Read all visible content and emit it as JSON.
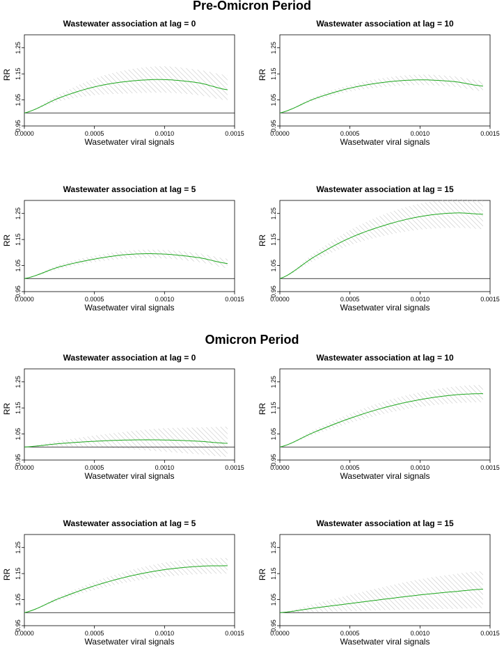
{
  "sections": [
    {
      "title": "Pre-Omicron Period"
    },
    {
      "title": "Omicron Period"
    }
  ],
  "colors": {
    "curve": "#1aa61a",
    "ci_hatch": "#c8c8c8",
    "axis": "#000000",
    "reference": "#000000"
  },
  "chart_data": [
    {
      "type": "line",
      "section": "Pre-Omicron Period",
      "title": "Wastewater association at lag = 0",
      "xlabel": "Wasetwater viral signals",
      "ylabel": "RR",
      "xlim": [
        0,
        0.0015
      ],
      "ylim": [
        0.95,
        1.3
      ],
      "xticks": [
        0,
        0.0005,
        0.001,
        0.0015
      ],
      "xtick_labels": [
        "0.0000",
        "0.0005",
        "0.0010",
        "0.0015"
      ],
      "yticks": [
        0.95,
        1.05,
        1.15,
        1.25
      ],
      "ytick_labels": [
        "0.95",
        "1.05",
        "1.15",
        "1.25"
      ],
      "reference_line": 1.0,
      "x": [
        0,
        0.00025,
        0.0005,
        0.00075,
        0.001,
        0.00125,
        0.00145
      ],
      "rr": [
        1.0,
        1.058,
        1.1,
        1.122,
        1.128,
        1.115,
        1.089
      ],
      "lower": [
        1.0,
        1.045,
        1.068,
        1.075,
        1.078,
        1.068,
        1.048
      ],
      "upper": [
        1.0,
        1.072,
        1.132,
        1.167,
        1.179,
        1.165,
        1.145
      ]
    },
    {
      "type": "line",
      "section": "Pre-Omicron Period",
      "title": "Wastewater association at lag = 10",
      "xlabel": "Wasetwater viral signals",
      "ylabel": "RR",
      "xlim": [
        0,
        0.0015
      ],
      "ylim": [
        0.95,
        1.3
      ],
      "xticks": [
        0,
        0.0005,
        0.001,
        0.0015
      ],
      "xtick_labels": [
        "0.0000",
        "0.0005",
        "0.0010",
        "0.0015"
      ],
      "yticks": [
        0.95,
        1.05,
        1.15,
        1.25
      ],
      "ytick_labels": [
        "0.95",
        "1.05",
        "1.15",
        "1.25"
      ],
      "reference_line": 1.0,
      "x": [
        0,
        0.00025,
        0.0005,
        0.00075,
        0.001,
        0.00125,
        0.00145
      ],
      "rr": [
        1.0,
        1.055,
        1.095,
        1.118,
        1.127,
        1.12,
        1.103
      ],
      "lower": [
        1.0,
        1.048,
        1.082,
        1.1,
        1.107,
        1.1,
        1.083
      ],
      "upper": [
        1.0,
        1.063,
        1.108,
        1.135,
        1.147,
        1.14,
        1.123
      ]
    },
    {
      "type": "line",
      "section": "Pre-Omicron Period",
      "title": "Wastewater association at lag = 5",
      "xlabel": "Wasetwater viral signals",
      "ylabel": "RR",
      "xlim": [
        0,
        0.0015
      ],
      "ylim": [
        0.95,
        1.3
      ],
      "xticks": [
        0,
        0.0005,
        0.001,
        0.0015
      ],
      "xtick_labels": [
        "0.0000",
        "0.0005",
        "0.0010",
        "0.0015"
      ],
      "yticks": [
        0.95,
        1.05,
        1.15,
        1.25
      ],
      "ytick_labels": [
        "0.95",
        "1.05",
        "1.15",
        "1.25"
      ],
      "reference_line": 1.0,
      "x": [
        0,
        0.00025,
        0.0005,
        0.00075,
        0.001,
        0.00125,
        0.00145
      ],
      "rr": [
        1.0,
        1.045,
        1.075,
        1.093,
        1.094,
        1.08,
        1.058
      ],
      "lower": [
        1.0,
        1.036,
        1.063,
        1.077,
        1.077,
        1.063,
        1.04
      ],
      "upper": [
        1.0,
        1.054,
        1.088,
        1.108,
        1.11,
        1.097,
        1.076
      ]
    },
    {
      "type": "line",
      "section": "Pre-Omicron Period",
      "title": "Wastewater association at lag = 15",
      "xlabel": "Wasetwater viral signals",
      "ylabel": "RR",
      "xlim": [
        0,
        0.0015
      ],
      "ylim": [
        0.95,
        1.3
      ],
      "xticks": [
        0,
        0.0005,
        0.001,
        0.0015
      ],
      "xtick_labels": [
        "0.0000",
        "0.0005",
        "0.0010",
        "0.0015"
      ],
      "yticks": [
        0.95,
        1.05,
        1.15,
        1.25
      ],
      "ytick_labels": [
        "0.95",
        "1.05",
        "1.15",
        "1.25"
      ],
      "reference_line": 1.0,
      "x": [
        0,
        0.00025,
        0.0005,
        0.00075,
        0.001,
        0.00125,
        0.00145
      ],
      "rr": [
        1.0,
        1.085,
        1.156,
        1.205,
        1.238,
        1.252,
        1.247
      ],
      "lower": [
        1.0,
        1.07,
        1.128,
        1.165,
        1.188,
        1.195,
        1.19
      ],
      "upper": [
        1.0,
        1.1,
        1.186,
        1.248,
        1.288,
        1.305,
        1.3
      ]
    },
    {
      "type": "line",
      "section": "Omicron Period",
      "title": "Wastewater association at lag = 0",
      "xlabel": "Wasetwater viral signals",
      "ylabel": "RR",
      "xlim": [
        0,
        0.0015
      ],
      "ylim": [
        0.95,
        1.3
      ],
      "xticks": [
        0,
        0.0005,
        0.001,
        0.0015
      ],
      "xtick_labels": [
        "0.0000",
        "0.0005",
        "0.0010",
        "0.0015"
      ],
      "yticks": [
        0.95,
        1.05,
        1.15,
        1.25
      ],
      "ytick_labels": [
        "0.95",
        "1.05",
        "1.15",
        "1.25"
      ],
      "reference_line": 1.0,
      "x": [
        0,
        0.00025,
        0.0005,
        0.00075,
        0.001,
        0.00125,
        0.00145
      ],
      "rr": [
        1.0,
        1.013,
        1.022,
        1.027,
        1.027,
        1.022,
        1.014
      ],
      "lower": [
        1.0,
        1.003,
        1.0,
        0.992,
        0.982,
        0.972,
        0.962
      ],
      "upper": [
        1.0,
        1.024,
        1.044,
        1.06,
        1.072,
        1.075,
        1.078
      ]
    },
    {
      "type": "line",
      "section": "Omicron Period",
      "title": "Wastewater association at lag = 10",
      "xlabel": "Wasetwater viral signals",
      "ylabel": "RR",
      "xlim": [
        0,
        0.0015
      ],
      "ylim": [
        0.95,
        1.3
      ],
      "xticks": [
        0,
        0.0005,
        0.001,
        0.0015
      ],
      "xtick_labels": [
        "0.0000",
        "0.0005",
        "0.0010",
        "0.0015"
      ],
      "yticks": [
        0.95,
        1.05,
        1.15,
        1.25
      ],
      "ytick_labels": [
        "0.95",
        "1.05",
        "1.15",
        "1.25"
      ],
      "reference_line": 1.0,
      "x": [
        0,
        0.00025,
        0.0005,
        0.00075,
        0.001,
        0.00125,
        0.00145
      ],
      "rr": [
        1.0,
        1.058,
        1.11,
        1.152,
        1.182,
        1.2,
        1.205
      ],
      "lower": [
        1.0,
        1.048,
        1.092,
        1.128,
        1.154,
        1.168,
        1.172
      ],
      "upper": [
        1.0,
        1.068,
        1.128,
        1.176,
        1.21,
        1.232,
        1.238
      ]
    },
    {
      "type": "line",
      "section": "Omicron Period",
      "title": "Wastewater association at lag = 5",
      "xlabel": "Wasetwater viral signals",
      "ylabel": "RR",
      "xlim": [
        0,
        0.0015
      ],
      "ylim": [
        0.95,
        1.3
      ],
      "xticks": [
        0,
        0.0005,
        0.001,
        0.0015
      ],
      "xtick_labels": [
        "0.0000",
        "0.0005",
        "0.0010",
        "0.0015"
      ],
      "yticks": [
        0.95,
        1.05,
        1.15,
        1.25
      ],
      "ytick_labels": [
        "0.95",
        "1.05",
        "1.15",
        "1.25"
      ],
      "reference_line": 1.0,
      "x": [
        0,
        0.00025,
        0.0005,
        0.00075,
        0.001,
        0.00125,
        0.00145
      ],
      "rr": [
        1.0,
        1.055,
        1.103,
        1.14,
        1.165,
        1.178,
        1.18
      ],
      "lower": [
        1.0,
        1.047,
        1.087,
        1.118,
        1.138,
        1.148,
        1.15
      ],
      "upper": [
        1.0,
        1.063,
        1.119,
        1.162,
        1.192,
        1.208,
        1.21
      ]
    },
    {
      "type": "line",
      "section": "Omicron Period",
      "title": "Wastewater association at lag = 15",
      "xlabel": "Wasetwater viral signals",
      "ylabel": "RR",
      "xlim": [
        0,
        0.0015
      ],
      "ylim": [
        0.95,
        1.3
      ],
      "xticks": [
        0,
        0.0005,
        0.001,
        0.0015
      ],
      "xtick_labels": [
        "0.0000",
        "0.0005",
        "0.0010",
        "0.0015"
      ],
      "yticks": [
        0.95,
        1.05,
        1.15,
        1.25
      ],
      "ytick_labels": [
        "0.95",
        "1.05",
        "1.15",
        "1.25"
      ],
      "reference_line": 1.0,
      "x": [
        0,
        0.00025,
        0.0005,
        0.00075,
        0.001,
        0.00125,
        0.00145
      ],
      "rr": [
        1.0,
        1.018,
        1.035,
        1.052,
        1.068,
        1.081,
        1.09
      ],
      "lower": [
        1.0,
        1.003,
        1.006,
        1.01,
        1.013,
        1.015,
        1.018
      ],
      "upper": [
        1.0,
        1.035,
        1.068,
        1.1,
        1.128,
        1.148,
        1.16
      ]
    }
  ]
}
